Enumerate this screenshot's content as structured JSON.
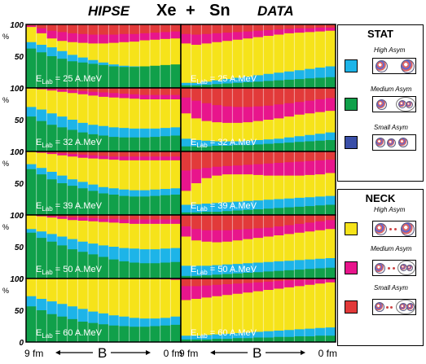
{
  "header": {
    "left": "HIPSE",
    "center_a": "Xe",
    "plus": "+",
    "center_b": "Sn",
    "right": "DATA"
  },
  "chart_data": {
    "type": "area",
    "layout": "stacked 100% bars, 5 rows x 2 columns",
    "ylabel": "%",
    "yticks": [
      "0",
      "50",
      "100"
    ],
    "ylim": [
      0,
      100
    ],
    "xaxis": {
      "left": "9 fm",
      "center": "B",
      "right": "0 fm"
    },
    "colors": {
      "stat_high": "#1db4e8",
      "stat_medium": "#10a04a",
      "stat_small": "#3a4fa8",
      "neck_high": "#f6e31a",
      "neck_medium": "#e8158c",
      "neck_small": "#e23a3a"
    },
    "columns": [
      "HIPSE",
      "DATA"
    ],
    "panels": [
      {
        "col": 0,
        "row": 0,
        "label_pre": "E",
        "label_sub": "Lab",
        "label_post": " = 25 A.MeV",
        "bounds": {
          "yellow": [
            96,
            86,
            78,
            74,
            72,
            71,
            70,
            70,
            71,
            72,
            73,
            75,
            76,
            77,
            78
          ],
          "magenta": [
            98,
            94,
            90,
            88,
            86,
            85,
            84,
            84,
            84,
            85,
            85,
            86,
            87,
            88,
            89
          ],
          "green": [
            72,
            68,
            64,
            58,
            52,
            48,
            44,
            40,
            37,
            35,
            34,
            33,
            33,
            34,
            35
          ],
          "blue": [
            62,
            56,
            50,
            46,
            42,
            40,
            38,
            36,
            34,
            33,
            33,
            34,
            35,
            36,
            37
          ]
        }
      },
      {
        "col": 1,
        "row": 0,
        "label_pre": "E",
        "label_sub": "Lab",
        "label_post": " = 25 A.MeV",
        "bounds": {
          "yellow": [
            70,
            68,
            70,
            72,
            74,
            76,
            78,
            80,
            82,
            84,
            86,
            87,
            88,
            89,
            90
          ],
          "magenta": [
            85,
            84,
            85,
            86,
            87,
            88,
            89,
            90,
            91,
            92,
            93,
            94,
            94,
            95,
            95
          ],
          "green": [
            8,
            8,
            10,
            12,
            14,
            16,
            18,
            20,
            22,
            24,
            26,
            28,
            30,
            32,
            34
          ],
          "blue": [
            4,
            4,
            5,
            6,
            7,
            8,
            9,
            10,
            11,
            12,
            13,
            14,
            15,
            16,
            17
          ]
        }
      },
      {
        "col": 0,
        "row": 1,
        "label_pre": "E",
        "label_sub": "Lab",
        "label_post": " = 32 A.MeV",
        "bounds": {
          "yellow": [
            100,
            98,
            96,
            94,
            92,
            90,
            88,
            86,
            85,
            84,
            83,
            82,
            82,
            82,
            82
          ],
          "magenta": [
            100,
            99,
            98,
            97,
            96,
            95,
            94,
            93,
            92,
            91,
            90,
            89,
            89,
            89,
            89
          ],
          "green": [
            70,
            66,
            60,
            55,
            50,
            45,
            42,
            40,
            38,
            37,
            36,
            36,
            36,
            37,
            38
          ],
          "blue": [
            55,
            48,
            42,
            38,
            34,
            30,
            27,
            25,
            23,
            22,
            22,
            22,
            23,
            24,
            25
          ]
        }
      },
      {
        "col": 1,
        "row": 1,
        "label_pre": "E",
        "label_sub": "Lab",
        "label_post": " = 32 A.MeV",
        "bounds": {
          "yellow": [
            60,
            52,
            48,
            46,
            45,
            45,
            46,
            48,
            50,
            52,
            55,
            58,
            60,
            62,
            64
          ],
          "magenta": [
            85,
            80,
            76,
            73,
            71,
            70,
            70,
            71,
            72,
            74,
            76,
            78,
            80,
            82,
            84
          ],
          "green": [
            20,
            18,
            17,
            16,
            16,
            16,
            17,
            18,
            19,
            20,
            22,
            24,
            26,
            28,
            30
          ],
          "blue": [
            8,
            8,
            8,
            9,
            9,
            10,
            10,
            11,
            12,
            13,
            14,
            15,
            16,
            17,
            18
          ]
        }
      },
      {
        "col": 0,
        "row": 2,
        "label_pre": "E",
        "label_sub": "Lab",
        "label_post": " = 39 A.MeV",
        "bounds": {
          "yellow": [
            100,
            98,
            96,
            94,
            92,
            90,
            89,
            88,
            87,
            86,
            86,
            86,
            86,
            86,
            86
          ],
          "magenta": [
            100,
            99,
            98,
            97,
            96,
            95,
            94,
            93,
            92,
            92,
            92,
            92,
            92,
            92,
            92
          ],
          "green": [
            80,
            74,
            68,
            62,
            56,
            52,
            48,
            44,
            42,
            40,
            39,
            39,
            40,
            41,
            42
          ],
          "blue": [
            72,
            64,
            56,
            50,
            46,
            42,
            38,
            34,
            32,
            30,
            29,
            29,
            30,
            31,
            32
          ]
        }
      },
      {
        "col": 1,
        "row": 2,
        "label_pre": "E",
        "label_sub": "Lab",
        "label_post": " = 39 A.MeV",
        "bounds": {
          "yellow": [
            38,
            50,
            58,
            62,
            64,
            64,
            64,
            63,
            62,
            62,
            62,
            62,
            63,
            64,
            66
          ],
          "magenta": [
            70,
            72,
            74,
            76,
            77,
            78,
            79,
            80,
            81,
            82,
            83,
            84,
            85,
            86,
            87
          ],
          "green": [
            16,
            17,
            18,
            19,
            20,
            21,
            22,
            23,
            24,
            25,
            26,
            27,
            28,
            29,
            30
          ],
          "blue": [
            4,
            4,
            5,
            5,
            6,
            7,
            8,
            9,
            10,
            11,
            12,
            13,
            14,
            15,
            16
          ]
        }
      },
      {
        "col": 0,
        "row": 3,
        "label_pre": "E",
        "label_sub": "Lab",
        "label_post": " = 50 A.MeV",
        "bounds": {
          "yellow": [
            100,
            98,
            96,
            94,
            92,
            91,
            90,
            89,
            88,
            87,
            86,
            86,
            86,
            86,
            86
          ],
          "magenta": [
            100,
            99,
            98,
            97,
            96,
            96,
            95,
            94,
            94,
            93,
            93,
            93,
            93,
            93,
            93
          ],
          "green": [
            78,
            74,
            70,
            66,
            62,
            58,
            55,
            52,
            50,
            48,
            47,
            46,
            46,
            47,
            48
          ],
          "blue": [
            72,
            64,
            58,
            52,
            46,
            42,
            38,
            34,
            30,
            27,
            25,
            24,
            24,
            25,
            26
          ]
        }
      },
      {
        "col": 1,
        "row": 3,
        "label_pre": "E",
        "label_sub": "Lab",
        "label_post": " = 50 A.MeV",
        "bounds": {
          "yellow": [
            66,
            60,
            58,
            57,
            58,
            60,
            62,
            64,
            66,
            68,
            70,
            72,
            74,
            76,
            78
          ],
          "magenta": [
            82,
            78,
            76,
            76,
            76,
            77,
            78,
            79,
            80,
            82,
            84,
            86,
            88,
            90,
            92
          ],
          "green": [
            20,
            20,
            20,
            21,
            22,
            23,
            24,
            25,
            26,
            27,
            28,
            29,
            30,
            31,
            32
          ],
          "blue": [
            4,
            4,
            5,
            6,
            7,
            8,
            9,
            10,
            11,
            12,
            13,
            14,
            15,
            16,
            17
          ]
        }
      },
      {
        "col": 0,
        "row": 4,
        "label_pre": "E",
        "label_sub": "Lab",
        "label_post": " = 60 A.MeV",
        "bounds": {
          "yellow": [
            100,
            100,
            100,
            100,
            100,
            100,
            100,
            100,
            100,
            100,
            100,
            100,
            100,
            99,
            98
          ],
          "magenta": [
            100,
            100,
            100,
            100,
            100,
            100,
            100,
            100,
            100,
            100,
            100,
            100,
            100,
            100,
            100
          ],
          "green": [
            72,
            68,
            64,
            60,
            56,
            52,
            48,
            45,
            42,
            40,
            38,
            37,
            37,
            38,
            40
          ],
          "blue": [
            56,
            50,
            44,
            40,
            36,
            32,
            30,
            28,
            26,
            25,
            24,
            24,
            25,
            26,
            27
          ]
        }
      },
      {
        "col": 1,
        "row": 4,
        "label_pre": "E",
        "label_sub": "Lab",
        "label_post": " = 60 A.MeV",
        "bounds": {
          "yellow": [
            66,
            68,
            70,
            72,
            74,
            76,
            78,
            80,
            82,
            84,
            86,
            88,
            90,
            92,
            94
          ],
          "magenta": [
            88,
            88,
            89,
            90,
            91,
            92,
            93,
            94,
            95,
            96,
            97,
            98,
            98,
            99,
            99
          ],
          "green": [
            10,
            10,
            11,
            12,
            13,
            14,
            15,
            16,
            17,
            18,
            19,
            20,
            21,
            22,
            23
          ],
          "blue": [
            4,
            4,
            4,
            5,
            5,
            6,
            6,
            7,
            7,
            8,
            8,
            9,
            9,
            10,
            10
          ]
        }
      }
    ]
  },
  "legend": {
    "stat": {
      "title": "STAT",
      "items": [
        "High Asym",
        "Medium Asym",
        "Small Asym"
      ]
    },
    "neck": {
      "title": "NECK",
      "items": [
        "High Asym",
        "Medium Asym",
        "Small Asym"
      ]
    }
  }
}
